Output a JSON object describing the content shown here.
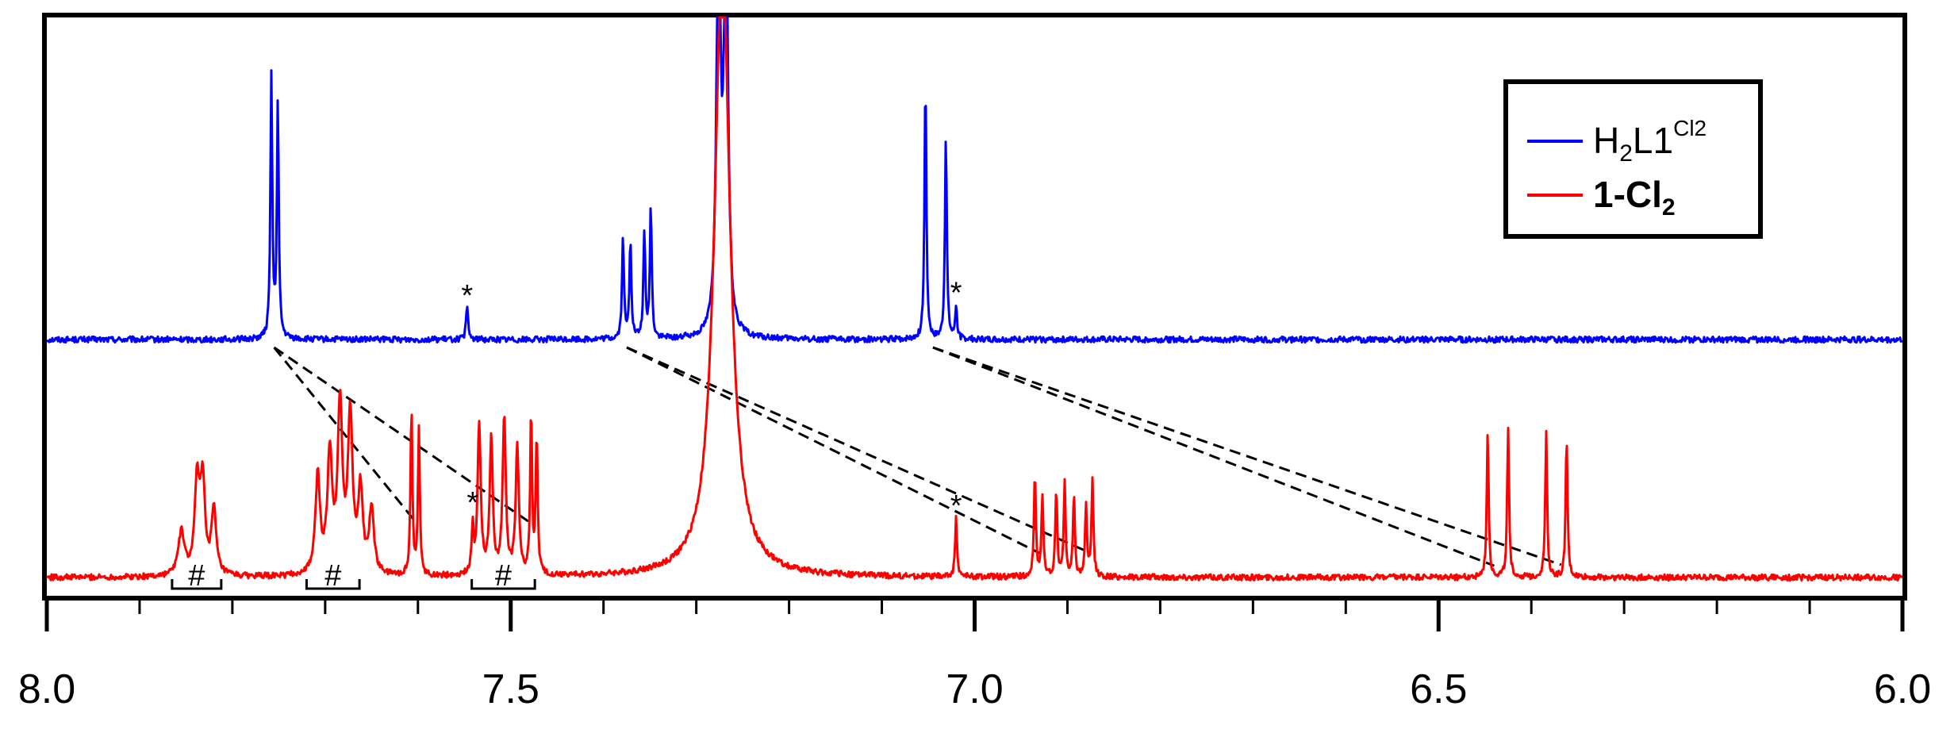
{
  "chart_data": {
    "type": "line",
    "title": "",
    "xlabel": "",
    "ylabel": "",
    "xlim": [
      8.0,
      6.0
    ],
    "x_ticks": [
      8.0,
      7.5,
      7.0,
      6.5,
      6.0
    ],
    "x_tick_labels": [
      "8.0",
      "7.5",
      "7.0",
      "6.5",
      "6.0"
    ],
    "grid": false,
    "legend_position": "top-right",
    "legend": {
      "blue_main": "H",
      "blue_sub": "2",
      "blue_mid": "L1",
      "blue_sup": "Cl2",
      "red_main": "1-Cl",
      "red_sub": "2"
    },
    "colors": {
      "blue": "#0000ff",
      "red": "#ff0000",
      "axis": "#000000",
      "connector": "#000000"
    },
    "series": [
      {
        "name": "H2L1Cl2",
        "color": "#0000ff",
        "baseline": 0.0,
        "peaks": [
          {
            "x": 7.758,
            "h": 0.97,
            "w": 0.0012
          },
          {
            "x": 7.751,
            "h": 0.87,
            "w": 0.0012
          },
          {
            "x": 7.547,
            "h": 0.12,
            "w": 0.0013
          },
          {
            "x": 7.379,
            "h": 0.38,
            "w": 0.0012
          },
          {
            "x": 7.371,
            "h": 0.37,
            "w": 0.0012
          },
          {
            "x": 7.356,
            "h": 0.4,
            "w": 0.0012
          },
          {
            "x": 7.349,
            "h": 0.49,
            "w": 0.0012
          },
          {
            "x": 7.276,
            "h": 1.6,
            "w": 0.0025
          },
          {
            "x": 7.268,
            "h": 1.6,
            "w": 0.0025
          },
          {
            "x": 7.053,
            "h": 0.97,
            "w": 0.0012
          },
          {
            "x": 7.031,
            "h": 0.76,
            "w": 0.0012
          },
          {
            "x": 7.02,
            "h": 0.12,
            "w": 0.0012
          }
        ],
        "stars": [
          7.547,
          7.02
        ]
      },
      {
        "name": "1-Cl2",
        "color": "#ff0000",
        "baseline": 0.0,
        "peaks": [
          {
            "x": 7.855,
            "h": 0.16,
            "w": 0.004
          },
          {
            "x": 7.838,
            "h": 0.34,
            "w": 0.003
          },
          {
            "x": 7.832,
            "h": 0.34,
            "w": 0.003
          },
          {
            "x": 7.82,
            "h": 0.24,
            "w": 0.003
          },
          {
            "x": 7.708,
            "h": 0.36,
            "w": 0.003
          },
          {
            "x": 7.695,
            "h": 0.44,
            "w": 0.003
          },
          {
            "x": 7.684,
            "h": 0.62,
            "w": 0.003
          },
          {
            "x": 7.673,
            "h": 0.58,
            "w": 0.003
          },
          {
            "x": 7.662,
            "h": 0.3,
            "w": 0.003
          },
          {
            "x": 7.65,
            "h": 0.24,
            "w": 0.003
          },
          {
            "x": 7.607,
            "h": 0.62,
            "w": 0.0012
          },
          {
            "x": 7.599,
            "h": 0.54,
            "w": 0.0012
          },
          {
            "x": 7.541,
            "h": 0.18,
            "w": 0.0012
          },
          {
            "x": 7.534,
            "h": 0.56,
            "w": 0.002
          },
          {
            "x": 7.521,
            "h": 0.5,
            "w": 0.002
          },
          {
            "x": 7.507,
            "h": 0.58,
            "w": 0.002
          },
          {
            "x": 7.493,
            "h": 0.48,
            "w": 0.002
          },
          {
            "x": 7.478,
            "h": 0.6,
            "w": 0.0012
          },
          {
            "x": 7.472,
            "h": 0.52,
            "w": 0.0012
          },
          {
            "x": 7.272,
            "h": 2.3,
            "w": 0.01
          },
          {
            "x": 7.02,
            "h": 0.22,
            "w": 0.0012
          },
          {
            "x": 6.935,
            "h": 0.38,
            "w": 0.0012
          },
          {
            "x": 6.927,
            "h": 0.3,
            "w": 0.0012
          },
          {
            "x": 6.912,
            "h": 0.32,
            "w": 0.0012
          },
          {
            "x": 6.903,
            "h": 0.34,
            "w": 0.0012
          },
          {
            "x": 6.893,
            "h": 0.3,
            "w": 0.0012
          },
          {
            "x": 6.88,
            "h": 0.26,
            "w": 0.0012
          },
          {
            "x": 6.873,
            "h": 0.36,
            "w": 0.0012
          },
          {
            "x": 6.447,
            "h": 0.55,
            "w": 0.0012
          },
          {
            "x": 6.425,
            "h": 0.55,
            "w": 0.0012
          },
          {
            "x": 6.384,
            "h": 0.54,
            "w": 0.0012
          },
          {
            "x": 6.362,
            "h": 0.52,
            "w": 0.0012
          }
        ],
        "stars": [
          7.541,
          7.02
        ],
        "hash_groups": [
          {
            "from": 7.865,
            "to": 7.812,
            "label": "#"
          },
          {
            "from": 7.72,
            "to": 7.663,
            "label": "#"
          },
          {
            "from": 7.542,
            "to": 7.474,
            "label": "#"
          }
        ]
      }
    ],
    "connectors": [
      {
        "from_x": 7.755,
        "to_x": 7.605
      },
      {
        "from_x": 7.755,
        "to_x": 7.475
      },
      {
        "from_x": 7.375,
        "to_x": 6.93
      },
      {
        "from_x": 7.375,
        "to_x": 6.877
      },
      {
        "from_x": 7.045,
        "to_x": 6.44
      },
      {
        "from_x": 7.045,
        "to_x": 6.368
      }
    ]
  }
}
